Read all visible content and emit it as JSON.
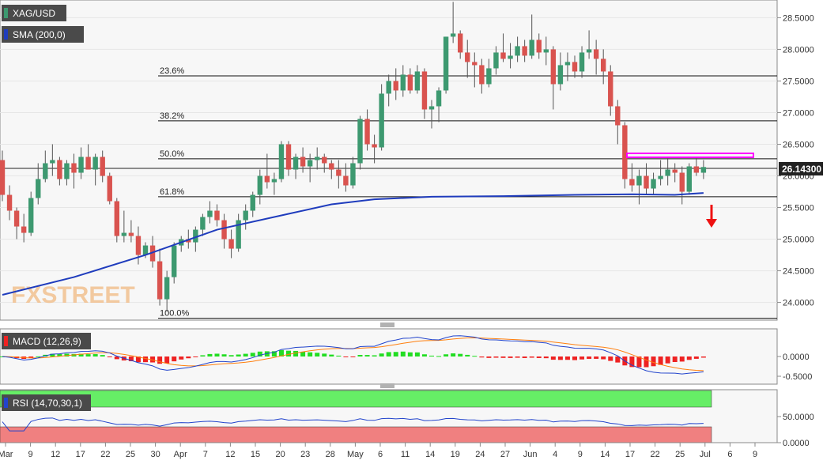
{
  "symbol": "XAG/USD",
  "sma_label": "SMA (200,0)",
  "macd_label": "MACD (12,26,9)",
  "rsi_label": "RSI (14,70,30,1)",
  "watermark": "FXSTREET",
  "current_price": "26.14300",
  "fib_levels": [
    {
      "label": "23.6%",
      "value": 27.58
    },
    {
      "label": "38.2%",
      "value": 26.87
    },
    {
      "label": "50.0%",
      "value": 26.27
    },
    {
      "label": "61.8%",
      "value": 25.67
    },
    {
      "label": "100.0%",
      "value": 23.75
    }
  ],
  "x_ticks": [
    "Mar",
    "9",
    "12",
    "17",
    "22",
    "25",
    "30",
    "Apr",
    "7",
    "12",
    "15",
    "20",
    "23",
    "28",
    "May",
    "6",
    "11",
    "14",
    "19",
    "24",
    "27",
    "Jun",
    "4",
    "9",
    "14",
    "17",
    "22",
    "25",
    "Jul",
    "6",
    "9"
  ],
  "colors": {
    "bull": "#3d9970",
    "bear": "#d9534f",
    "sma": "#1f3cbd",
    "macd_line": "#2244cc",
    "signal_line": "#ff7f0e",
    "hist_pos": "#22dd22",
    "hist_neg": "#ee2222",
    "rsi_line": "#2244cc",
    "overbought": "#66ee66",
    "oversold": "#f08080",
    "resistance_box": "#ff00ff",
    "arrow": "#ee1111"
  },
  "chart_data": [
    {
      "type": "candlestick",
      "title": "XAG/USD",
      "y_ticks": [
        "28.5000",
        "28.0000",
        "27.5000",
        "27.0000",
        "26.5000",
        "26.0000",
        "25.5000",
        "25.0000",
        "24.5000",
        "24.0000"
      ],
      "ylim": [
        23.72,
        28.78
      ],
      "candles": [
        {
          "o": 26.25,
          "h": 26.4,
          "l": 25.6,
          "c": 25.7
        },
        {
          "o": 25.7,
          "h": 25.85,
          "l": 25.3,
          "c": 25.45
        },
        {
          "o": 25.45,
          "h": 25.5,
          "l": 25.0,
          "c": 25.2
        },
        {
          "o": 25.2,
          "h": 25.4,
          "l": 24.95,
          "c": 25.1
        },
        {
          "o": 25.1,
          "h": 25.75,
          "l": 25.05,
          "c": 25.65
        },
        {
          "o": 25.65,
          "h": 26.2,
          "l": 25.55,
          "c": 25.95
        },
        {
          "o": 25.95,
          "h": 26.4,
          "l": 25.9,
          "c": 26.2
        },
        {
          "o": 26.2,
          "h": 26.5,
          "l": 26.0,
          "c": 26.25
        },
        {
          "o": 26.25,
          "h": 26.3,
          "l": 25.85,
          "c": 25.95
        },
        {
          "o": 25.95,
          "h": 26.25,
          "l": 25.85,
          "c": 26.2
        },
        {
          "o": 26.2,
          "h": 26.35,
          "l": 25.8,
          "c": 26.05
        },
        {
          "o": 26.05,
          "h": 26.45,
          "l": 25.95,
          "c": 26.3
        },
        {
          "o": 26.3,
          "h": 26.5,
          "l": 26.1,
          "c": 26.1
        },
        {
          "o": 26.1,
          "h": 26.35,
          "l": 25.85,
          "c": 26.3
        },
        {
          "o": 26.3,
          "h": 26.4,
          "l": 25.9,
          "c": 26.0
        },
        {
          "o": 26.0,
          "h": 26.05,
          "l": 25.55,
          "c": 25.6
        },
        {
          "o": 25.6,
          "h": 25.65,
          "l": 24.95,
          "c": 25.05
        },
        {
          "o": 25.05,
          "h": 25.45,
          "l": 24.95,
          "c": 25.1
        },
        {
          "o": 25.1,
          "h": 25.3,
          "l": 24.95,
          "c": 25.05
        },
        {
          "o": 25.05,
          "h": 25.2,
          "l": 24.6,
          "c": 24.75
        },
        {
          "o": 24.75,
          "h": 24.95,
          "l": 24.7,
          "c": 24.9
        },
        {
          "o": 24.9,
          "h": 25.05,
          "l": 24.55,
          "c": 24.65
        },
        {
          "o": 24.65,
          "h": 24.85,
          "l": 23.95,
          "c": 24.05
        },
        {
          "o": 24.05,
          "h": 24.5,
          "l": 23.85,
          "c": 24.4
        },
        {
          "o": 24.4,
          "h": 24.95,
          "l": 24.3,
          "c": 24.9
        },
        {
          "o": 24.9,
          "h": 25.05,
          "l": 24.8,
          "c": 25.0
        },
        {
          "o": 25.0,
          "h": 25.15,
          "l": 24.85,
          "c": 24.95
        },
        {
          "o": 24.95,
          "h": 25.2,
          "l": 24.8,
          "c": 25.15
        },
        {
          "o": 25.15,
          "h": 25.4,
          "l": 25.05,
          "c": 25.35
        },
        {
          "o": 25.35,
          "h": 25.6,
          "l": 25.25,
          "c": 25.45
        },
        {
          "o": 25.45,
          "h": 25.55,
          "l": 25.2,
          "c": 25.3
        },
        {
          "o": 25.3,
          "h": 25.4,
          "l": 24.85,
          "c": 25.0
        },
        {
          "o": 25.0,
          "h": 25.15,
          "l": 24.7,
          "c": 24.85
        },
        {
          "o": 24.85,
          "h": 25.4,
          "l": 24.8,
          "c": 25.3
        },
        {
          "o": 25.3,
          "h": 25.55,
          "l": 25.15,
          "c": 25.45
        },
        {
          "o": 25.45,
          "h": 25.75,
          "l": 25.35,
          "c": 25.7
        },
        {
          "o": 25.7,
          "h": 26.1,
          "l": 25.55,
          "c": 26.0
        },
        {
          "o": 26.0,
          "h": 26.35,
          "l": 25.8,
          "c": 25.9
        },
        {
          "o": 25.9,
          "h": 26.05,
          "l": 25.7,
          "c": 25.95
        },
        {
          "o": 25.95,
          "h": 26.55,
          "l": 25.9,
          "c": 26.5
        },
        {
          "o": 26.5,
          "h": 26.55,
          "l": 26.0,
          "c": 26.1
        },
        {
          "o": 26.1,
          "h": 26.35,
          "l": 25.95,
          "c": 26.3
        },
        {
          "o": 26.3,
          "h": 26.45,
          "l": 26.05,
          "c": 26.15
        },
        {
          "o": 26.15,
          "h": 26.35,
          "l": 25.9,
          "c": 26.25
        },
        {
          "o": 26.25,
          "h": 26.45,
          "l": 26.1,
          "c": 26.3
        },
        {
          "o": 26.3,
          "h": 26.35,
          "l": 26.05,
          "c": 26.2
        },
        {
          "o": 26.2,
          "h": 26.25,
          "l": 25.95,
          "c": 26.1
        },
        {
          "o": 26.1,
          "h": 26.25,
          "l": 25.8,
          "c": 26.0
        },
        {
          "o": 26.0,
          "h": 26.2,
          "l": 25.75,
          "c": 25.85
        },
        {
          "o": 25.85,
          "h": 26.3,
          "l": 25.8,
          "c": 26.2
        },
        {
          "o": 26.2,
          "h": 26.95,
          "l": 26.1,
          "c": 26.9
        },
        {
          "o": 26.9,
          "h": 27.05,
          "l": 26.4,
          "c": 26.5
        },
        {
          "o": 26.5,
          "h": 26.65,
          "l": 26.2,
          "c": 26.45
        },
        {
          "o": 26.45,
          "h": 27.45,
          "l": 26.4,
          "c": 27.3
        },
        {
          "o": 27.3,
          "h": 27.6,
          "l": 27.1,
          "c": 27.5
        },
        {
          "o": 27.5,
          "h": 27.7,
          "l": 27.2,
          "c": 27.35
        },
        {
          "o": 27.35,
          "h": 27.75,
          "l": 27.25,
          "c": 27.6
        },
        {
          "o": 27.6,
          "h": 27.7,
          "l": 27.3,
          "c": 27.35
        },
        {
          "o": 27.35,
          "h": 27.75,
          "l": 27.3,
          "c": 27.65
        },
        {
          "o": 27.65,
          "h": 27.7,
          "l": 26.9,
          "c": 27.05
        },
        {
          "o": 27.05,
          "h": 27.2,
          "l": 26.75,
          "c": 27.1
        },
        {
          "o": 27.1,
          "h": 27.4,
          "l": 26.85,
          "c": 27.35
        },
        {
          "o": 27.35,
          "h": 28.2,
          "l": 27.3,
          "c": 28.2
        },
        {
          "o": 28.2,
          "h": 28.75,
          "l": 28.1,
          "c": 28.25
        },
        {
          "o": 28.25,
          "h": 28.3,
          "l": 27.85,
          "c": 27.95
        },
        {
          "o": 27.95,
          "h": 28.15,
          "l": 27.55,
          "c": 27.8
        },
        {
          "o": 27.8,
          "h": 27.95,
          "l": 27.4,
          "c": 27.75
        },
        {
          "o": 27.75,
          "h": 27.85,
          "l": 27.3,
          "c": 27.45
        },
        {
          "o": 27.45,
          "h": 27.85,
          "l": 27.4,
          "c": 27.7
        },
        {
          "o": 27.7,
          "h": 28.05,
          "l": 27.6,
          "c": 27.95
        },
        {
          "o": 27.95,
          "h": 28.25,
          "l": 27.8,
          "c": 27.85
        },
        {
          "o": 27.85,
          "h": 28.1,
          "l": 27.7,
          "c": 27.9
        },
        {
          "o": 27.9,
          "h": 28.2,
          "l": 27.8,
          "c": 28.05
        },
        {
          "o": 28.05,
          "h": 28.15,
          "l": 27.8,
          "c": 27.9
        },
        {
          "o": 27.9,
          "h": 28.55,
          "l": 27.85,
          "c": 28.15
        },
        {
          "o": 28.15,
          "h": 28.25,
          "l": 27.85,
          "c": 27.95
        },
        {
          "o": 27.95,
          "h": 28.2,
          "l": 27.75,
          "c": 28.0
        },
        {
          "o": 28.0,
          "h": 28.05,
          "l": 27.05,
          "c": 27.45
        },
        {
          "o": 27.45,
          "h": 27.95,
          "l": 27.35,
          "c": 27.75
        },
        {
          "o": 27.75,
          "h": 27.95,
          "l": 27.5,
          "c": 27.8
        },
        {
          "o": 27.8,
          "h": 27.9,
          "l": 27.55,
          "c": 27.65
        },
        {
          "o": 27.65,
          "h": 28.05,
          "l": 27.55,
          "c": 27.95
        },
        {
          "o": 27.95,
          "h": 28.3,
          "l": 27.85,
          "c": 28.0
        },
        {
          "o": 28.0,
          "h": 28.15,
          "l": 27.6,
          "c": 27.85
        },
        {
          "o": 27.85,
          "h": 28.0,
          "l": 27.45,
          "c": 27.65
        },
        {
          "o": 27.65,
          "h": 27.75,
          "l": 26.95,
          "c": 27.1
        },
        {
          "o": 27.1,
          "h": 27.2,
          "l": 26.5,
          "c": 26.8
        },
        {
          "o": 26.8,
          "h": 26.85,
          "l": 25.8,
          "c": 25.95
        },
        {
          "o": 25.95,
          "h": 26.2,
          "l": 25.75,
          "c": 25.85
        },
        {
          "o": 25.85,
          "h": 26.1,
          "l": 25.55,
          "c": 26.0
        },
        {
          "o": 26.0,
          "h": 26.2,
          "l": 25.7,
          "c": 25.8
        },
        {
          "o": 25.8,
          "h": 26.05,
          "l": 25.7,
          "c": 25.95
        },
        {
          "o": 25.95,
          "h": 26.25,
          "l": 25.85,
          "c": 26.0
        },
        {
          "o": 26.0,
          "h": 26.3,
          "l": 25.85,
          "c": 26.1
        },
        {
          "o": 26.1,
          "h": 26.2,
          "l": 25.9,
          "c": 26.05
        },
        {
          "o": 26.05,
          "h": 26.15,
          "l": 25.55,
          "c": 25.75
        },
        {
          "o": 25.75,
          "h": 26.2,
          "l": 25.7,
          "c": 26.15
        },
        {
          "o": 26.15,
          "h": 26.3,
          "l": 26.0,
          "c": 26.05
        },
        {
          "o": 26.05,
          "h": 26.25,
          "l": 25.95,
          "c": 26.14
        }
      ],
      "sma": [
        {
          "i": 0,
          "v": 24.12
        },
        {
          "i": 10,
          "v": 24.4
        },
        {
          "i": 20,
          "v": 24.75
        },
        {
          "i": 30,
          "v": 25.15
        },
        {
          "i": 40,
          "v": 25.4
        },
        {
          "i": 46,
          "v": 25.55
        },
        {
          "i": 52,
          "v": 25.63
        },
        {
          "i": 60,
          "v": 25.67
        },
        {
          "i": 70,
          "v": 25.68
        },
        {
          "i": 80,
          "v": 25.7
        },
        {
          "i": 88,
          "v": 25.71
        },
        {
          "i": 94,
          "v": 25.7
        },
        {
          "i": 98,
          "v": 25.73
        }
      ]
    },
    {
      "type": "line",
      "title": "MACD (12,26,9)",
      "y_ticks": [
        "0.0000",
        "-0.5000"
      ],
      "ylim": [
        -0.7,
        0.7
      ]
    },
    {
      "type": "line",
      "title": "RSI (14,70,30,1)",
      "y_ticks": [
        "50.0000",
        "0.0000"
      ],
      "ylim": [
        0,
        100
      ]
    }
  ]
}
